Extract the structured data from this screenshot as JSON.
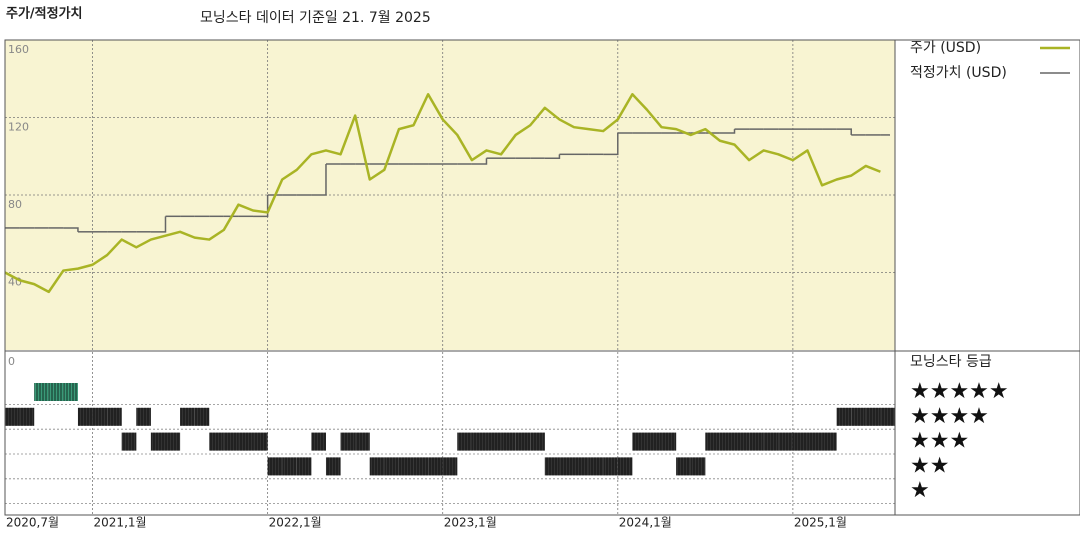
{
  "chart_data": [
    {
      "type": "line",
      "title": "주가/적정가치",
      "subtitle": "모닝스타 데이터 기준일 21. 7월 2025",
      "x": [
        "2020-07",
        "2020-08",
        "2020-09",
        "2020-10",
        "2020-11",
        "2020-12",
        "2021-01",
        "2021-02",
        "2021-03",
        "2021-04",
        "2021-05",
        "2021-06",
        "2021-07",
        "2021-08",
        "2021-09",
        "2021-10",
        "2021-11",
        "2021-12",
        "2022-01",
        "2022-02",
        "2022-03",
        "2022-04",
        "2022-05",
        "2022-06",
        "2022-07",
        "2022-08",
        "2022-09",
        "2022-10",
        "2022-11",
        "2022-12",
        "2023-01",
        "2023-02",
        "2023-03",
        "2023-04",
        "2023-05",
        "2023-06",
        "2023-07",
        "2023-08",
        "2023-09",
        "2023-10",
        "2023-11",
        "2023-12",
        "2024-01",
        "2024-02",
        "2024-03",
        "2024-04",
        "2024-05",
        "2024-06",
        "2024-07",
        "2024-08",
        "2024-09",
        "2024-10",
        "2024-11",
        "2024-12",
        "2025-01",
        "2025-02",
        "2025-03",
        "2025-04",
        "2025-05",
        "2025-06",
        "2025-07"
      ],
      "series": [
        {
          "name": "주가 (USD)",
          "color": "#a9b425",
          "values": [
            40,
            36,
            34,
            30,
            41,
            42,
            44,
            49,
            57,
            53,
            57,
            59,
            61,
            58,
            57,
            62,
            75,
            72,
            71,
            88,
            93,
            101,
            103,
            101,
            121,
            88,
            93,
            114,
            116,
            132,
            119,
            111,
            98,
            103,
            101,
            111,
            116,
            125,
            119,
            115,
            114,
            113,
            119,
            132,
            124,
            115,
            114,
            111,
            114,
            108,
            106,
            98,
            103,
            101,
            98,
            103,
            85,
            88,
            90,
            95,
            92
          ]
        },
        {
          "name": "적정가치 (USD)",
          "color": "#666666",
          "values": [
            63,
            63,
            63,
            63,
            63,
            61,
            61,
            61,
            61,
            61,
            61,
            69,
            69,
            69,
            69,
            69,
            69,
            69,
            80,
            80,
            80,
            80,
            96,
            96,
            96,
            96,
            96,
            96,
            96,
            96,
            96,
            96,
            96,
            99,
            99,
            99,
            99,
            99,
            101,
            101,
            101,
            101,
            112,
            112,
            112,
            112,
            112,
            112,
            112,
            112,
            114,
            114,
            114,
            114,
            114,
            114,
            114,
            114,
            111,
            111,
            111
          ]
        }
      ],
      "xlim": [
        "2020-07",
        "2025-08"
      ],
      "xticks": [
        {
          "value": "2020-07",
          "label": "2020,7월"
        },
        {
          "value": "2021-01",
          "label": "2021,1월"
        },
        {
          "value": "2022-01",
          "label": "2022,1월"
        },
        {
          "value": "2023-01",
          "label": "2023,1월"
        },
        {
          "value": "2024-01",
          "label": "2024,1월"
        },
        {
          "value": "2025-01",
          "label": "2025,1월"
        }
      ],
      "ylim": [
        0,
        160
      ],
      "yticks": [
        40,
        80,
        120,
        160
      ],
      "grid": true
    },
    {
      "type": "rating",
      "title": "모닝스타 등급",
      "x": [
        "2020-07",
        "2020-08",
        "2020-09",
        "2020-10",
        "2020-11",
        "2020-12",
        "2021-01",
        "2021-02",
        "2021-03",
        "2021-04",
        "2021-05",
        "2021-06",
        "2021-07",
        "2021-08",
        "2021-09",
        "2021-10",
        "2021-11",
        "2021-12",
        "2022-01",
        "2022-02",
        "2022-03",
        "2022-04",
        "2022-05",
        "2022-06",
        "2022-07",
        "2022-08",
        "2022-09",
        "2022-10",
        "2022-11",
        "2022-12",
        "2023-01",
        "2023-02",
        "2023-03",
        "2023-04",
        "2023-05",
        "2023-06",
        "2023-07",
        "2023-08",
        "2023-09",
        "2023-10",
        "2023-11",
        "2023-12",
        "2024-01",
        "2024-02",
        "2024-03",
        "2024-04",
        "2024-05",
        "2024-06",
        "2024-07",
        "2024-08",
        "2024-09",
        "2024-10",
        "2024-11",
        "2024-12",
        "2025-01",
        "2025-02",
        "2025-03",
        "2025-04",
        "2025-05",
        "2025-06",
        "2025-07"
      ],
      "values": [
        4,
        4,
        5,
        5,
        5,
        4,
        4,
        4,
        3,
        4,
        3,
        3,
        4,
        4,
        3,
        3,
        3,
        3,
        2,
        2,
        2,
        3,
        2,
        3,
        3,
        2,
        2,
        2,
        2,
        2,
        2,
        3,
        3,
        3,
        3,
        3,
        3,
        2,
        2,
        2,
        2,
        2,
        2,
        3,
        3,
        3,
        2,
        2,
        3,
        3,
        3,
        3,
        3,
        3,
        3,
        3,
        3,
        4,
        4,
        4,
        4
      ],
      "levels": [
        {
          "value": 5,
          "label": "★★★★★",
          "color": "#3a9a78"
        },
        {
          "value": 4,
          "label": "★★★★",
          "color": "#333333"
        },
        {
          "value": 3,
          "label": "★★★",
          "color": "#333333"
        },
        {
          "value": 2,
          "label": "★★",
          "color": "#333333"
        },
        {
          "value": 1,
          "label": "★",
          "color": "#333333"
        }
      ],
      "yticks": [
        0
      ]
    }
  ]
}
